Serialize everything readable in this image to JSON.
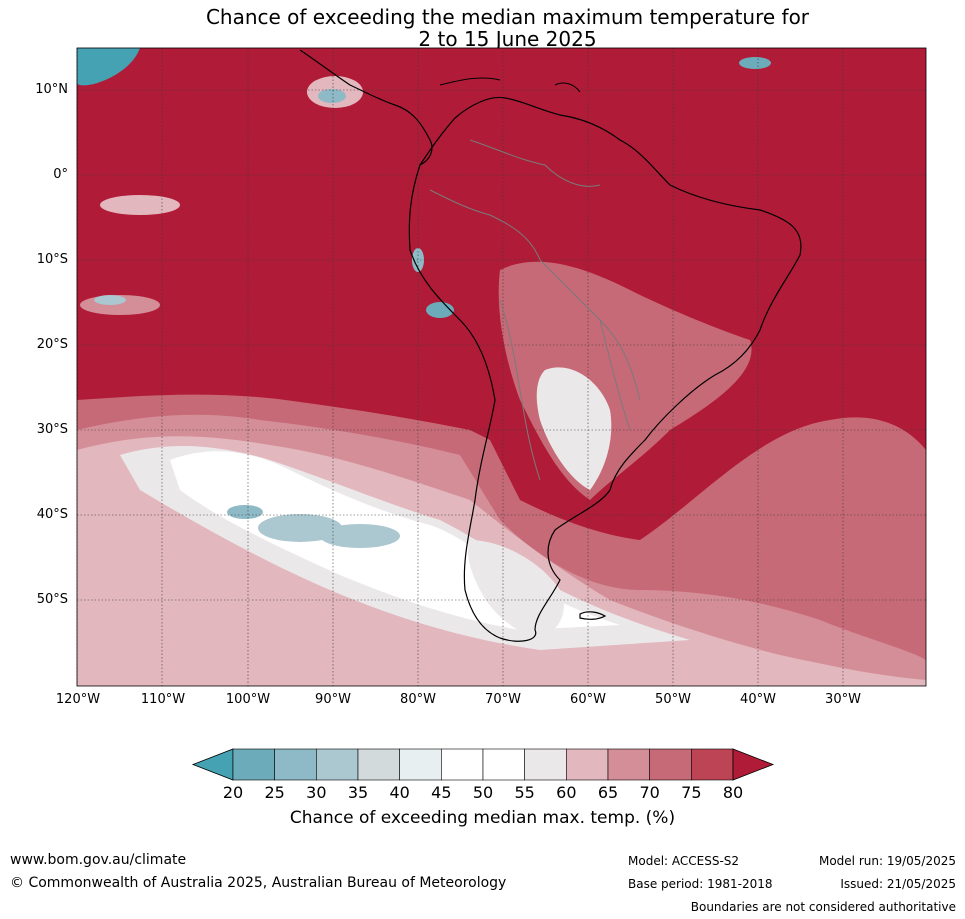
{
  "title_line1": "Chance of exceeding the median maximum temperature for",
  "title_line2": "2 to 15 June 2025",
  "lat_labels": [
    "10°N",
    "0°",
    "10°S",
    "20°S",
    "30°S",
    "40°S",
    "50°S"
  ],
  "lon_labels": [
    "120°W",
    "110°W",
    "100°W",
    "90°W",
    "80°W",
    "70°W",
    "60°W",
    "50°W",
    "40°W",
    "30°W"
  ],
  "colorbar": {
    "ticks": [
      "20",
      "25",
      "30",
      "35",
      "40",
      "45",
      "50",
      "55",
      "60",
      "65",
      "70",
      "75",
      "80"
    ],
    "colors": [
      "#45a2b3",
      "#6cacba",
      "#8dbac6",
      "#abc7cf",
      "#d2dadb",
      "#e8eff0",
      "#ffffff",
      "#ffffff",
      "#ebe8ea",
      "#e3b7be",
      "#d48e98",
      "#c76a77",
      "#bd4455",
      "#b01c38"
    ],
    "label": "Chance of exceeding median max. temp. (%)"
  },
  "footer": {
    "website": "www.bom.gov.au/climate",
    "copyright": "© Commonwealth of Australia 2025, Australian Bureau of Meteorology",
    "model": "Model: ACCESS-S2",
    "base_period": "Base period: 1981-2018",
    "model_run": "Model run: 19/05/2025",
    "issued": "Issued: 21/05/2025",
    "disclaimer": "Boundaries are not considered authoritative"
  }
}
